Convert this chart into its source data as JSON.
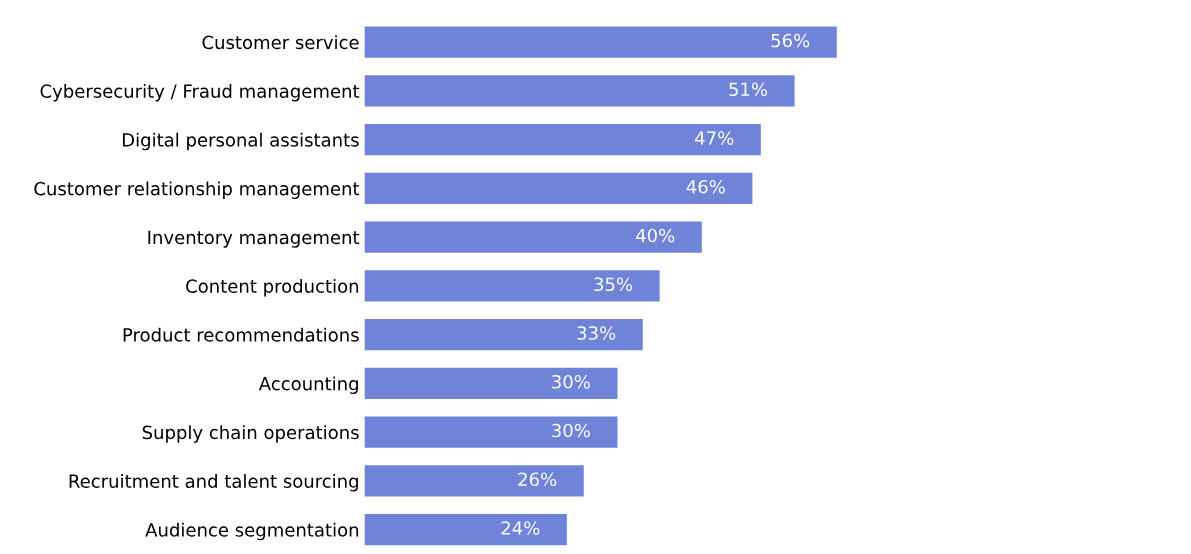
{
  "chart_data": {
    "type": "bar",
    "orientation": "horizontal",
    "tick_labels": "y",
    "categories": [
      "Customer service",
      "Cybersecurity / Fraud management",
      "Digital personal assistants",
      "Customer relationship management",
      "Inventory management",
      "Content production",
      "Product recommendations",
      "Accounting",
      "Supply chain operations",
      "Recruitment and talent sourcing",
      "Audience segmentation"
    ],
    "values": [
      56,
      51,
      47,
      46,
      40,
      35,
      33,
      30,
      30,
      26,
      24
    ],
    "value_labels": [
      "56%",
      "51%",
      "47%",
      "46%",
      "40%",
      "35%",
      "33%",
      "30%",
      "30%",
      "26%",
      "24%"
    ],
    "color": "#6f84d8"
  }
}
